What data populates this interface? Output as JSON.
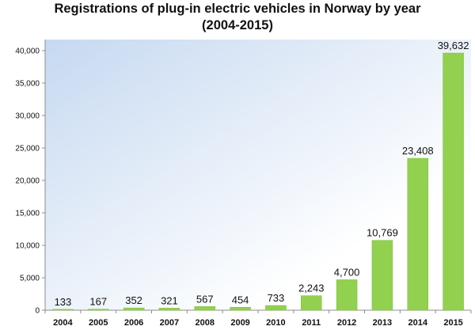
{
  "chart_data": {
    "type": "bar",
    "title_line1": "Registrations of plug-in electric vehicles in Norway by year",
    "title_line2": "(2004-2015)",
    "categories": [
      "2004",
      "2005",
      "2006",
      "2007",
      "2008",
      "2009",
      "2010",
      "2011",
      "2012",
      "2013",
      "2014",
      "2015"
    ],
    "values": [
      133,
      167,
      352,
      321,
      567,
      454,
      733,
      2243,
      4700,
      10769,
      23408,
      39632
    ],
    "value_labels": [
      "133",
      "167",
      "352",
      "321",
      "567",
      "454",
      "733",
      "2,243",
      "4,700",
      "10,769",
      "23,408",
      "39,632"
    ],
    "y_ticks": [
      0,
      5000,
      10000,
      15000,
      20000,
      25000,
      30000,
      35000,
      40000
    ],
    "y_tick_labels": [
      "0",
      "5,000",
      "10,000",
      "15,000",
      "20,000",
      "25,000",
      "30,000",
      "35,000",
      "40,000"
    ],
    "ylim": [
      0,
      40000
    ],
    "xlabel": "",
    "ylabel": "",
    "grid": false,
    "legend": "none",
    "colors": {
      "bar": "#92d050",
      "bar_edge": "#7cbf3a",
      "plot_bg_start": "#c6d9f1",
      "plot_bg_end": "#ffffff"
    }
  }
}
